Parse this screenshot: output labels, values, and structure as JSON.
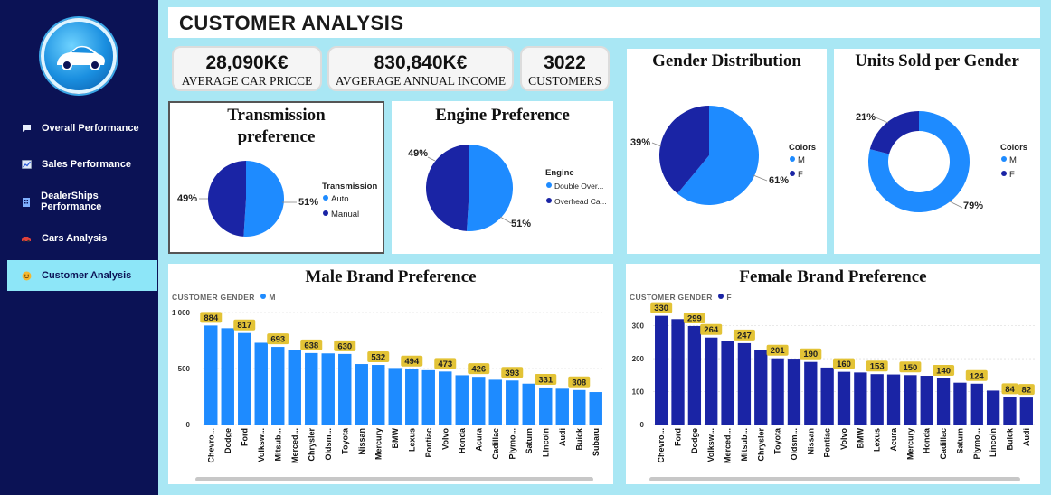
{
  "colors": {
    "male": "#1e8bff",
    "female": "#1a24a5",
    "label_bg": "#e3c336",
    "sidebar": "#0b1255"
  },
  "header": {
    "title": "CUSTOMER ANALYSIS"
  },
  "sidebar": {
    "items": [
      {
        "label": "Overall Performance",
        "icon": "chat-bubble-icon"
      },
      {
        "label": "Sales Performance",
        "icon": "line-chart-icon"
      },
      {
        "label": "DealerShips Performance",
        "icon": "building-icon"
      },
      {
        "label": "Cars Analysis",
        "icon": "car-icon"
      },
      {
        "label": "Customer Analysis",
        "icon": "smiley-icon"
      }
    ]
  },
  "kpis": [
    {
      "value": "28,090K€",
      "label": "AVERAGE CAR PRICCE"
    },
    {
      "value": "830,840K€",
      "label": "AVGERAGE ANNUAL INCOME"
    },
    {
      "value": "3022",
      "label": "CUSTOMERS"
    }
  ],
  "transmission": {
    "title_line1": "Transmission",
    "title_line2": "preference",
    "legend_title": "Transmission",
    "legend": [
      "Auto",
      "Manual"
    ],
    "labels": [
      "51%",
      "49%"
    ],
    "chart_data": {
      "type": "pie",
      "categories": [
        "Auto",
        "Manual"
      ],
      "values": [
        51,
        49
      ]
    }
  },
  "engine": {
    "title": "Engine Preference",
    "legend_title": "Engine",
    "legend": [
      "Double Over...",
      "Overhead Ca..."
    ],
    "labels": [
      "51%",
      "49%"
    ],
    "chart_data": {
      "type": "pie",
      "categories": [
        "Double Over...",
        "Overhead Ca..."
      ],
      "values": [
        51,
        49
      ]
    }
  },
  "gender": {
    "title": "Gender Distribution",
    "legend_title": "Colors",
    "legend": [
      "M",
      "F"
    ],
    "labels": [
      "61%",
      "39%"
    ],
    "chart_data": {
      "type": "pie",
      "categories": [
        "M",
        "F"
      ],
      "values": [
        61,
        39
      ]
    }
  },
  "units": {
    "title": "Units Sold per Gender",
    "legend_title": "Colors",
    "legend": [
      "M",
      "F"
    ],
    "labels": [
      "79%",
      "21%"
    ],
    "chart_data": {
      "type": "pie",
      "donut": true,
      "categories": [
        "M",
        "F"
      ],
      "values": [
        79,
        21
      ]
    }
  },
  "male_brand": {
    "title": "Male Brand Preference",
    "legend_label": "CUSTOMER GENDER",
    "legend_value": "M",
    "chart_data": {
      "type": "bar",
      "categories": [
        "Chevro...",
        "Dodge",
        "Ford",
        "Volksw...",
        "Mitsub...",
        "Merced...",
        "Chrysler",
        "Oldsm...",
        "Toyota",
        "Nissan",
        "Mercury",
        "BMW",
        "Lexus",
        "Pontiac",
        "Volvo",
        "Honda",
        "Acura",
        "Cadillac",
        "Plymo...",
        "Saturn",
        "Lincoln",
        "Audi",
        "Buick",
        "Subaru"
      ],
      "values": [
        884,
        860,
        817,
        730,
        693,
        665,
        638,
        635,
        630,
        540,
        532,
        505,
        494,
        485,
        473,
        440,
        426,
        400,
        393,
        365,
        331,
        320,
        308,
        290
      ],
      "data_labels": [
        884,
        null,
        817,
        null,
        693,
        null,
        638,
        null,
        630,
        null,
        532,
        null,
        494,
        null,
        473,
        null,
        426,
        null,
        393,
        null,
        331,
        null,
        308,
        null
      ],
      "yticks": [
        "0",
        "500",
        "1 000"
      ],
      "ylim": [
        0,
        1000
      ]
    }
  },
  "female_brand": {
    "title": "Female Brand Preference",
    "legend_label": "CUSTOMER GENDER",
    "legend_value": "F",
    "chart_data": {
      "type": "bar",
      "categories": [
        "Chevro...",
        "Ford",
        "Dodge",
        "Volksw...",
        "Merced...",
        "Mitsub...",
        "Chrysler",
        "Toyota",
        "Oldsm...",
        "Nissan",
        "Pontiac",
        "Volvo",
        "BMW",
        "Lexus",
        "Acura",
        "Mercury",
        "Honda",
        "Cadillac",
        "Saturn",
        "Plymo...",
        "Lincoln",
        "Buick",
        "Audi"
      ],
      "values": [
        330,
        320,
        299,
        264,
        255,
        247,
        225,
        201,
        200,
        190,
        173,
        160,
        158,
        153,
        152,
        150,
        148,
        140,
        127,
        124,
        103,
        84,
        82
      ],
      "data_labels": [
        330,
        null,
        299,
        264,
        null,
        247,
        null,
        201,
        null,
        190,
        null,
        160,
        null,
        153,
        null,
        150,
        null,
        140,
        null,
        124,
        null,
        84,
        82
      ],
      "yticks": [
        "0",
        "100",
        "200",
        "300"
      ],
      "ylim": [
        0,
        340
      ]
    }
  }
}
